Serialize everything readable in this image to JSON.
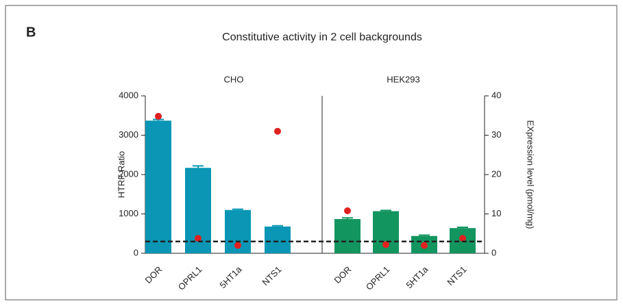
{
  "chart_data": {
    "type": "bar",
    "panel_label": "B",
    "title": "Constitutive activity  in 2 cell backgrounds",
    "ylabel": "HTRF Ratio",
    "y2label": "EXpression level (pmol/mg)",
    "ylim": [
      0,
      4000
    ],
    "yticks": [
      0,
      1000,
      2000,
      3000,
      4000
    ],
    "y2lim": [
      0,
      40
    ],
    "y2ticks": [
      0,
      10,
      20,
      30,
      40
    ],
    "reference_line": 300,
    "dot_color": "#e02020",
    "groups": [
      {
        "label": "CHO",
        "color": "#0a96b4",
        "categories": [
          "DOR",
          "OPRL1",
          "5HT1a",
          "NTS1"
        ],
        "values": [
          3370,
          2170,
          1100,
          680
        ],
        "errors": [
          30,
          50,
          20,
          20
        ],
        "expression": [
          34.8,
          3.8,
          2.0,
          31.0
        ]
      },
      {
        "label": "HEK293",
        "color": "#12955f",
        "categories": [
          "DOR",
          "OPRL1",
          "5HT1a",
          "NTS1"
        ],
        "values": [
          870,
          1070,
          440,
          640
        ],
        "errors": [
          30,
          20,
          20,
          20
        ],
        "expression": [
          10.8,
          2.2,
          2.0,
          3.8
        ]
      }
    ]
  }
}
